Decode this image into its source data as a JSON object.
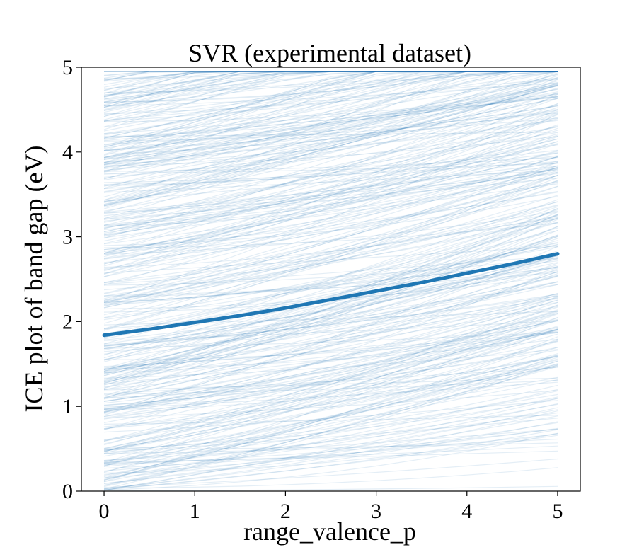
{
  "chart_data": {
    "type": "line",
    "title": "SVR (experimental dataset)",
    "xlabel": "range_valence_p",
    "ylabel": "ICE plot of band gap (eV)",
    "xlim": [
      -0.25,
      5.25
    ],
    "ylim": [
      0,
      5
    ],
    "xticks": [
      0,
      1,
      2,
      3,
      4,
      5
    ],
    "yticks": [
      0,
      1,
      2,
      3,
      4,
      5
    ],
    "grid": false,
    "ice_lines": {
      "count": 420,
      "x_start": 0,
      "x_end": 5,
      "start_range": [
        0.0,
        5.0
      ],
      "slope_range": [
        0.0,
        0.35
      ],
      "color": "#1f77b4",
      "opacity": 0.12
    },
    "series": [
      {
        "x": [
          0,
          0.5,
          1,
          1.5,
          2,
          2.5,
          3,
          3.5,
          4,
          4.5,
          5
        ],
        "y": [
          1.84,
          1.91,
          1.99,
          2.07,
          2.16,
          2.26,
          2.36,
          2.46,
          2.57,
          2.68,
          2.8
        ],
        "color": "#1f77b4"
      }
    ]
  }
}
